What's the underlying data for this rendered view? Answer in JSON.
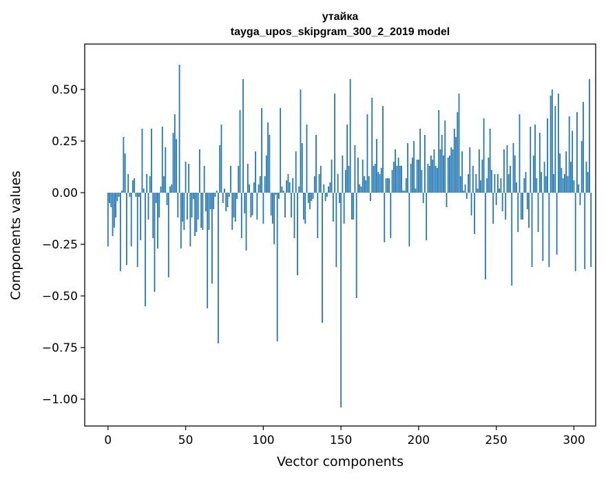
{
  "chart_data": {
    "type": "bar",
    "title": "утайка",
    "subtitle": "tayga_upos_skipgram_300_2_2019 model",
    "xlabel": "Vector components",
    "ylabel": "Components values",
    "xlim": [
      -15,
      314
    ],
    "ylim": [
      -1.13,
      0.72
    ],
    "xticks": [
      0,
      50,
      100,
      150,
      200,
      250,
      300
    ],
    "xtick_labels": [
      "0",
      "50",
      "100",
      "150",
      "200",
      "250",
      "300"
    ],
    "yticks": [
      -1.0,
      -0.75,
      -0.5,
      -0.25,
      0.0,
      0.25,
      0.5
    ],
    "ytick_labels": [
      "−1.00",
      "−0.75",
      "−0.50",
      "−0.25",
      "0.00",
      "0.25",
      "0.50"
    ],
    "grid": false,
    "bar_color": "#1f77b4",
    "values": [
      -0.26,
      -0.05,
      -0.07,
      -0.21,
      -0.17,
      -0.12,
      -0.04,
      -0.02,
      -0.38,
      0.01,
      0.27,
      0.19,
      -0.35,
      0.09,
      -0.02,
      -0.26,
      0.06,
      0.07,
      -0.02,
      -0.36,
      -0.02,
      -0.23,
      0.31,
      0.02,
      -0.55,
      0.09,
      -0.13,
      0.08,
      0.31,
      -0.22,
      -0.48,
      -0.05,
      -0.27,
      -0.12,
      0.03,
      0.32,
      0.08,
      0.22,
      -0.06,
      -0.41,
      0.03,
      0.04,
      0.29,
      0.38,
      0.26,
      -0.12,
      0.62,
      -0.27,
      -0.14,
      -0.18,
      0.15,
      -0.13,
      0.14,
      -0.26,
      -0.12,
      -0.03,
      -0.21,
      -0.19,
      -0.13,
      0.21,
      -0.17,
      -0.18,
      0.13,
      -0.09,
      -0.56,
      -0.18,
      -0.08,
      -0.44,
      -0.08,
      -0.02,
      0.01,
      -0.73,
      0.23,
      0.33,
      -0.05,
      0.02,
      -0.09,
      -0.07,
      -0.02,
      0.13,
      -0.18,
      -0.12,
      -0.14,
      -0.03,
      0.13,
      0.4,
      -0.22,
      0.55,
      -0.1,
      -0.28,
      0.14,
      0.04,
      -0.12,
      -0.11,
      0.05,
      0.2,
      -0.13,
      0.04,
      0.08,
      0.41,
      -0.15,
      0.08,
      0.18,
      0.34,
      0.28,
      -0.11,
      -0.15,
      -0.25,
      -0.01,
      -0.72,
      -0.03,
      0.41,
      0.03,
      0.01,
      -0.12,
      0.06,
      0.09,
      0.05,
      -0.12,
      0.07,
      -0.22,
      0.2,
      -0.4,
      0.03,
      0.5,
      0.24,
      -0.13,
      -0.15,
      0.33,
      -0.05,
      -0.08,
      -0.04,
      -0.03,
      0.08,
      0.28,
      -0.22,
      0.09,
      0.13,
      -0.63,
      0.04,
      -0.04,
      -0.02,
      0.03,
      0.05,
      0.16,
      -0.14,
      0.48,
      -0.36,
      0.09,
      -0.05,
      -1.04,
      0.18,
      -0.15,
      0.11,
      0.33,
      0.13,
      0.55,
      -0.13,
      -0.13,
      0.23,
      -0.51,
      0.17,
      0.04,
      0.03,
      0.16,
      0.08,
      0.06,
      0.38,
      0.08,
      -0.04,
      0.46,
      0.13,
      0.14,
      0.26,
      0.1,
      0.09,
      0.12,
      0.42,
      -0.24,
      0.07,
      0.07,
      0.07,
      -0.22,
      0.11,
      0.15,
      0.21,
      0.13,
      0.17,
      0.13,
      0.13,
      0.01,
      0.01,
      0.07,
      0.24,
      -0.26,
      0.14,
      0.17,
      0.25,
      0.02,
      0.16,
      0.16,
      0.31,
      0.11,
      -0.05,
      0.28,
      -0.23,
      0.14,
      0.13,
      0.18,
      0.16,
      0.21,
      0.13,
      0.12,
      0.4,
      0.21,
      0.28,
      0.18,
      0.35,
      -0.07,
      0.17,
      0.18,
      0.22,
      0.21,
      0.31,
      0.27,
      0.39,
      0.48,
      0.08,
      0.2,
      0.01,
      0.04,
      -0.03,
      0.09,
      0.22,
      -0.11,
      0.13,
      -0.2,
      0.09,
      0.02,
      0.21,
      0.06,
      0.16,
      0.36,
      -0.42,
      0.07,
      0.17,
      0.31,
      0.11,
      -0.15,
      0.09,
      -0.06,
      0.09,
      0.02,
      0.07,
      -0.09,
      0.21,
      -0.13,
      0.23,
      0.09,
      0.13,
      -0.45,
      0.24,
      0.18,
      0.05,
      -0.19,
      0.38,
      -0.13,
      -0.13,
      0.07,
      0.1,
      -0.08,
      -0.17,
      0.32,
      -0.36,
      0.18,
      0.33,
      0.07,
      -0.19,
      0.29,
      0.1,
      -0.33,
      0.15,
      0.08,
      0.36,
      -0.36,
      0.47,
      0.5,
      0.09,
      0.42,
      -0.3,
      0.48,
      0.19,
      0.12,
      0.07,
      0.09,
      0.2,
      0.08,
      0.37,
      0.15,
      0.3,
      0.06,
      -0.38,
      0.39,
      0.04,
      -0.06,
      0.25,
      0.44,
      -0.37,
      0.15,
      0.1,
      0.55,
      -0.36
    ]
  }
}
